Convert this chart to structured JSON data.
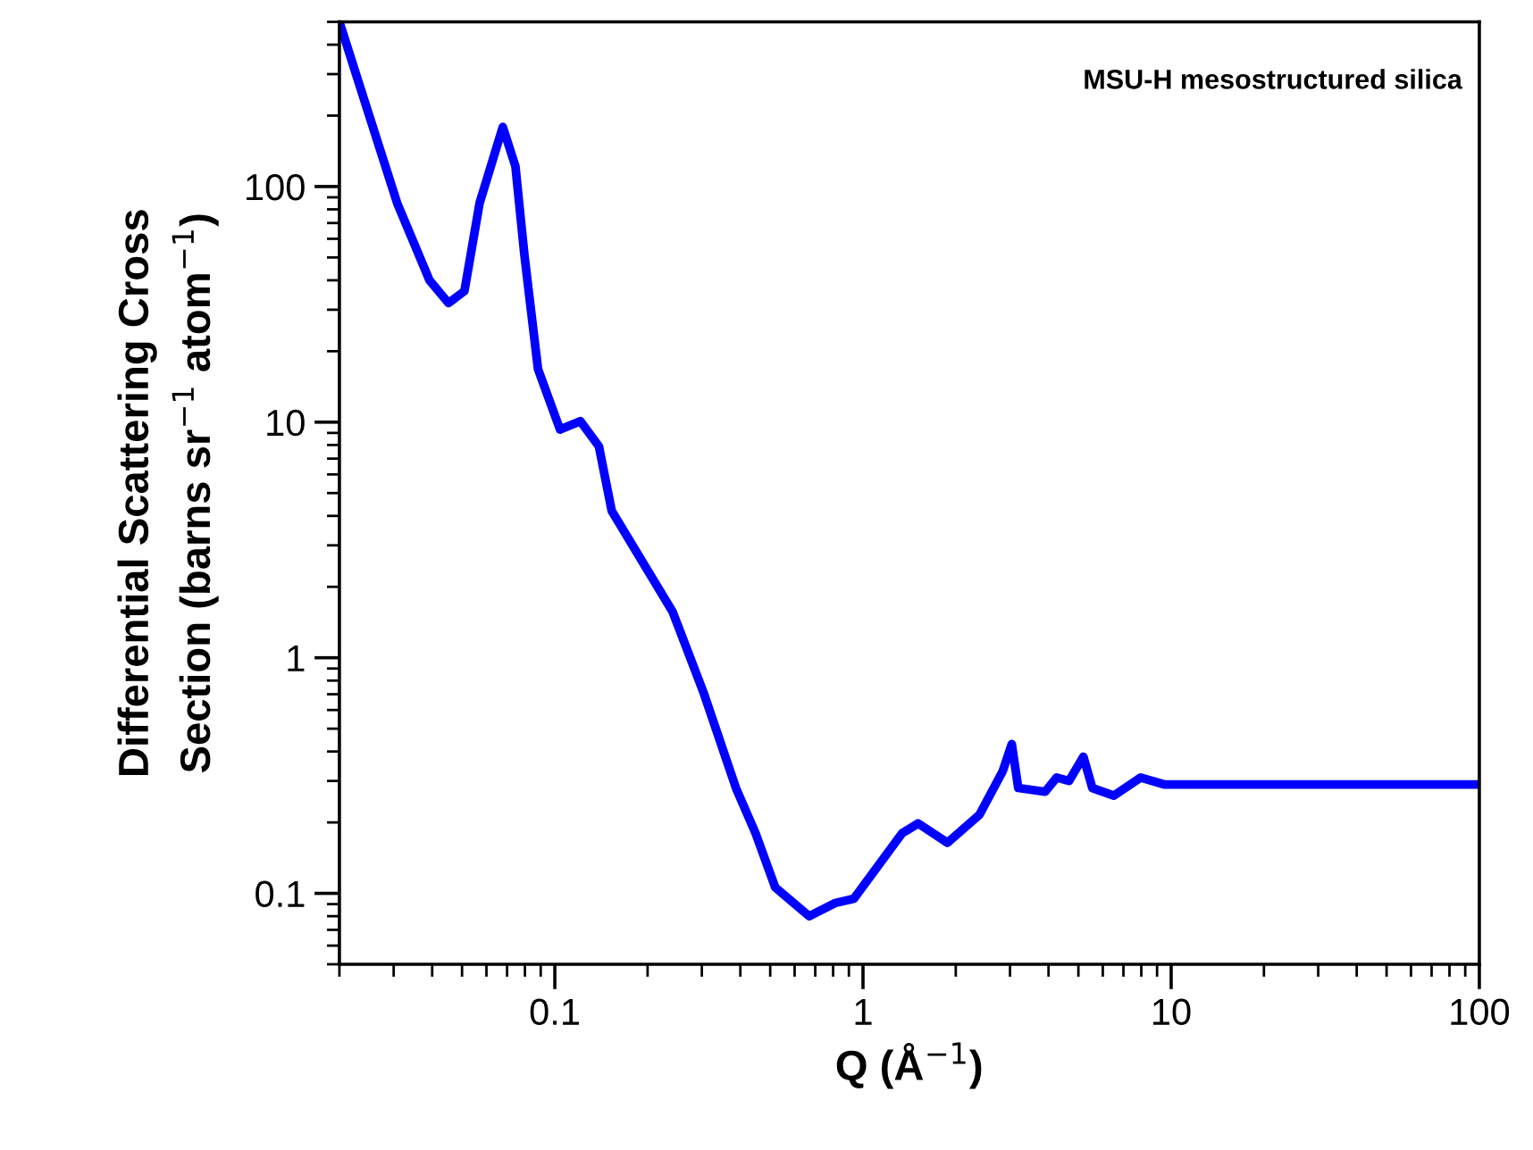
{
  "chart_data": {
    "type": "line",
    "xlabel": "Q (Å$^{−1}$)",
    "ylabel": "Differential Scattering Cross\nSection (barns sr$^{−1}$ atom$^{−1}$)",
    "annotations": [
      "MSU-H mesostructured silica"
    ],
    "log": "xy",
    "xlim": [
      0.02,
      100
    ],
    "ylim": [
      0.05,
      500
    ],
    "xticks": [
      0.1,
      1,
      10,
      100
    ],
    "yticks": [
      0.1,
      1,
      10,
      100
    ],
    "line_style": "solid",
    "marker": "none",
    "series": [
      {
        "color": "#0000ff",
        "x": [
          0.02,
          0.0231,
          0.0266,
          0.0308,
          0.0392,
          0.0452,
          0.0509,
          0.057,
          0.0678,
          0.0745,
          0.0797,
          0.0882,
          0.104,
          0.121,
          0.139,
          0.153,
          0.198,
          0.241,
          0.304,
          0.387,
          0.448,
          0.519,
          0.669,
          0.813,
          0.935,
          1.34,
          1.51,
          1.88,
          2.39,
          2.84,
          3.04,
          3.19,
          3.9,
          4.25,
          4.66,
          5.19,
          5.55,
          6.52,
          7.96,
          9.48,
          17.8,
          43.6,
          100
        ],
        "values": [
          500,
          276,
          155,
          85,
          40,
          32,
          36,
          85,
          179,
          122,
          51,
          16.8,
          9.3,
          10.1,
          7.9,
          4.2,
          2.4,
          1.57,
          0.71,
          0.28,
          0.18,
          0.106,
          0.08,
          0.091,
          0.095,
          0.18,
          0.198,
          0.164,
          0.216,
          0.33,
          0.43,
          0.28,
          0.27,
          0.31,
          0.3,
          0.38,
          0.28,
          0.26,
          0.31,
          0.29,
          0.29,
          0.29,
          0.29
        ]
      }
    ]
  }
}
